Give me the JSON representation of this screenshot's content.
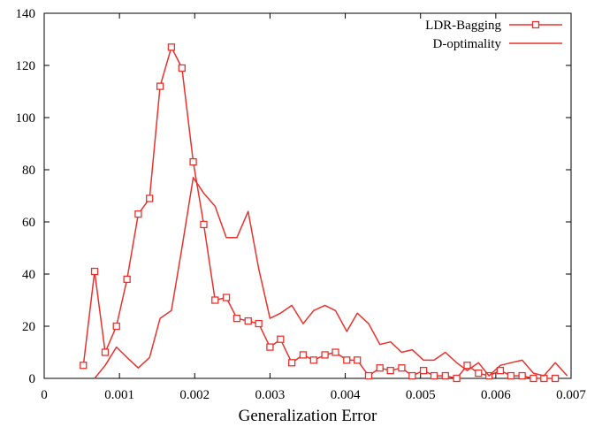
{
  "chart_data": {
    "type": "line",
    "title": "",
    "xlabel": "Generalization Error",
    "ylabel": "",
    "xlim": [
      0,
      0.007
    ],
    "ylim": [
      0,
      140
    ],
    "x_ticks": [
      0,
      0.001,
      0.002,
      0.003,
      0.004,
      0.005,
      0.006,
      0.007
    ],
    "x_tick_labels": [
      "0",
      "0.001",
      "0.002",
      "0.003",
      "0.004",
      "0.005",
      "0.006",
      "0.007"
    ],
    "y_ticks": [
      0,
      20,
      40,
      60,
      80,
      100,
      120,
      140
    ],
    "y_tick_labels": [
      "0",
      "20",
      "40",
      "60",
      "80",
      "100",
      "120",
      "140"
    ],
    "grid": false,
    "legend_position": "top-right",
    "color": "#e8322d",
    "series": [
      {
        "name": "LDR-Bagging",
        "marker": "square",
        "x": [
          0.00052,
          0.00067,
          0.00081,
          0.00096,
          0.0011,
          0.00125,
          0.0014,
          0.00154,
          0.00169,
          0.00183,
          0.00198,
          0.00212,
          0.00227,
          0.00242,
          0.00256,
          0.00271,
          0.00285,
          0.003,
          0.00314,
          0.00329,
          0.00344,
          0.00358,
          0.00373,
          0.00387,
          0.00402,
          0.00416,
          0.00431,
          0.00446,
          0.0046,
          0.00475,
          0.00489,
          0.00504,
          0.00518,
          0.00533,
          0.00548,
          0.00562,
          0.00577,
          0.00591,
          0.00606,
          0.0062,
          0.00635,
          0.0065,
          0.00664,
          0.00679
        ],
        "values": [
          5,
          41,
          10,
          20,
          38,
          63,
          69,
          112,
          127,
          119,
          83,
          59,
          30,
          31,
          23,
          22,
          21,
          12,
          15,
          6,
          9,
          7,
          9,
          10,
          7,
          7,
          1,
          4,
          3,
          4,
          1,
          3,
          1,
          1,
          0,
          5,
          2,
          1,
          3,
          1,
          1,
          0,
          0,
          0
        ]
      },
      {
        "name": "D-optimality",
        "marker": "none",
        "x": [
          0.00067,
          0.00081,
          0.00096,
          0.0011,
          0.00125,
          0.0014,
          0.00154,
          0.00169,
          0.00183,
          0.00198,
          0.00212,
          0.00227,
          0.00242,
          0.00256,
          0.00271,
          0.00285,
          0.003,
          0.00314,
          0.00329,
          0.00344,
          0.00358,
          0.00373,
          0.00387,
          0.00402,
          0.00416,
          0.00431,
          0.00446,
          0.0046,
          0.00475,
          0.00489,
          0.00504,
          0.00518,
          0.00533,
          0.00548,
          0.00562,
          0.00577,
          0.00591,
          0.00606,
          0.0062,
          0.00635,
          0.0065,
          0.00664,
          0.00679,
          0.00695
        ],
        "values": [
          0,
          5,
          12,
          8,
          4,
          8,
          23,
          26,
          50,
          77,
          71,
          66,
          54,
          54,
          64,
          42,
          23,
          25,
          28,
          21,
          26,
          28,
          26,
          18,
          25,
          21,
          13,
          14,
          10,
          11,
          7,
          7,
          10,
          6,
          3,
          6,
          1,
          5,
          6,
          7,
          2,
          1,
          6,
          1
        ]
      }
    ]
  }
}
